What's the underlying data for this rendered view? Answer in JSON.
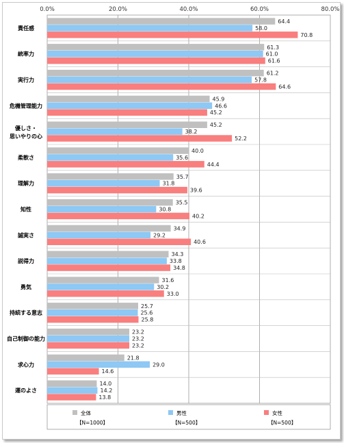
{
  "chart_data": {
    "type": "bar",
    "orientation": "horizontal",
    "xlim": [
      0,
      80
    ],
    "x_ticks": [
      "0.0%",
      "20.0%",
      "40.0%",
      "60.0%",
      "80.0%"
    ],
    "grid": "vertical",
    "categories": [
      [
        "責任感"
      ],
      [
        "統率力"
      ],
      [
        "実行力"
      ],
      [
        "危機管理能力"
      ],
      [
        "優しさ・",
        "思いやりの心"
      ],
      [
        "柔軟さ"
      ],
      [
        "理解力"
      ],
      [
        "知性"
      ],
      [
        "誠実さ"
      ],
      [
        "説得力"
      ],
      [
        "勇気"
      ],
      [
        "持続する意志"
      ],
      [
        "自己制御の能力"
      ],
      [
        "求心力"
      ],
      [
        "運のよさ"
      ]
    ],
    "series": [
      {
        "name": "全体",
        "n": "【N=1000】",
        "color": "#c0c0c0",
        "values": [
          64.4,
          61.3,
          61.2,
          45.9,
          45.2,
          40.0,
          35.7,
          35.5,
          34.9,
          34.3,
          31.6,
          25.7,
          23.2,
          21.8,
          14.0
        ],
        "labels": [
          "64.4",
          "61.3",
          "61.2",
          "45.9",
          "45.2",
          "40.0",
          "35.7",
          "35.5",
          "34.9",
          "34.3",
          "31.6",
          "25.7",
          "23.2",
          "21.8",
          "14.0"
        ]
      },
      {
        "name": "男性",
        "n": "【N=500】",
        "color": "#8ec8f4",
        "values": [
          58.0,
          61.0,
          57.8,
          46.6,
          38.2,
          35.6,
          31.8,
          30.8,
          29.2,
          33.8,
          30.2,
          25.6,
          23.2,
          29.0,
          14.2
        ],
        "labels": [
          "58.0",
          "61.0",
          "57.8",
          "46.6",
          "38.2",
          "35.6",
          "31.8",
          "30.8",
          "29.2",
          "33.8",
          "30.2",
          "25.6",
          "23.2",
          "29.0",
          "14.2"
        ]
      },
      {
        "name": "女性",
        "n": "【N=500】",
        "color": "#f97e7e",
        "values": [
          70.8,
          61.6,
          64.6,
          45.2,
          52.2,
          44.4,
          39.6,
          40.2,
          40.6,
          34.8,
          33.0,
          25.8,
          23.2,
          14.6,
          13.8
        ],
        "labels": [
          "70.8",
          "61.6",
          "64.6",
          "45.2",
          "52.2",
          "44.4",
          "39.6",
          "40.2",
          "40.6",
          "34.8",
          "33.0",
          "25.8",
          "23.2",
          "14.6",
          "13.8"
        ]
      }
    ],
    "legend": "bottom"
  }
}
